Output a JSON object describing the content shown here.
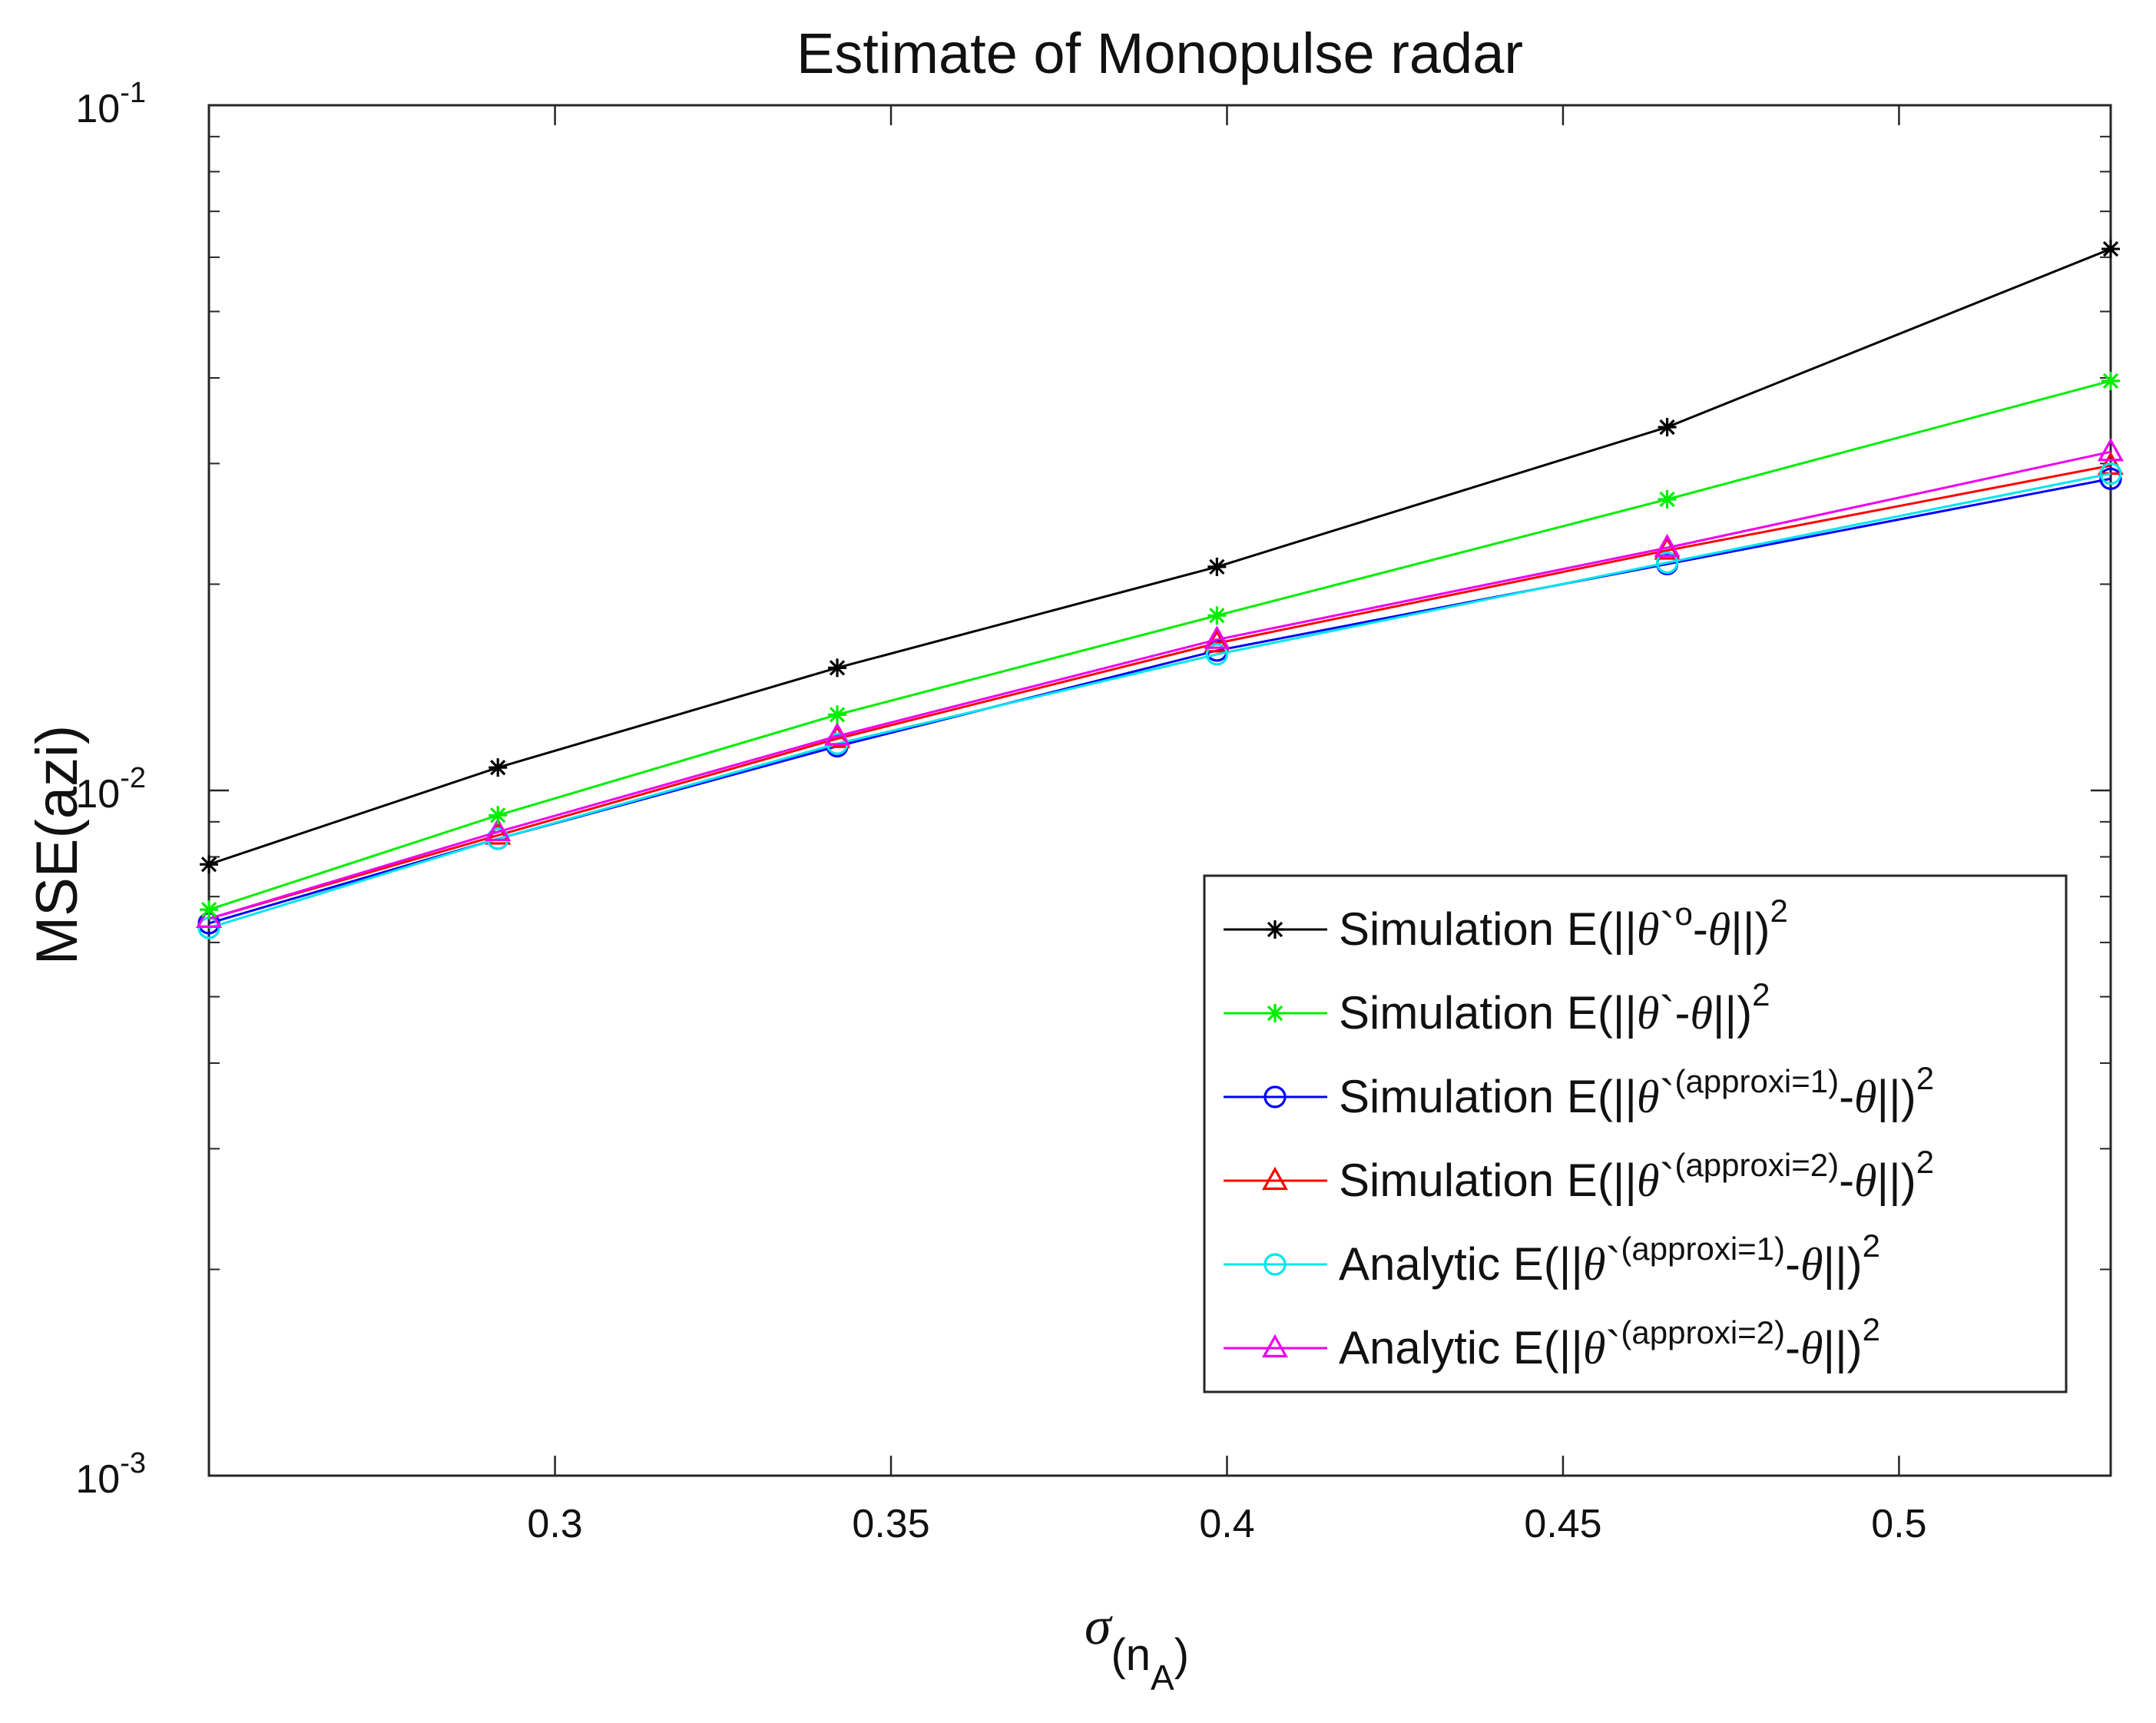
{
  "chart_data": {
    "type": "line",
    "title": "Estimate of Monopulse radar",
    "ylabel": "MSE(azi)",
    "xlabel": {
      "symbol": "σ",
      "sub_main": "(n",
      "sub_sub": "A",
      "sub_close": ")"
    },
    "xlim": [
      0.2485,
      0.5315
    ],
    "ylim": [
      0.001,
      0.1
    ],
    "yscale": "log",
    "grid": false,
    "legend_position": "bottom-right",
    "x_ticks": [
      {
        "value": 0.3,
        "label": "0.3"
      },
      {
        "value": 0.35,
        "label": "0.35"
      },
      {
        "value": 0.4,
        "label": "0.4"
      },
      {
        "value": 0.45,
        "label": "0.45"
      },
      {
        "value": 0.5,
        "label": "0.5"
      }
    ],
    "y_ticks": [
      {
        "value": 0.1,
        "base": "10",
        "exp": "-1"
      },
      {
        "value": 0.01,
        "base": "10",
        "exp": "-2"
      },
      {
        "value": 0.001,
        "base": "10",
        "exp": "-3"
      }
    ],
    "x": [
      0.2485,
      0.2915,
      0.342,
      0.3985,
      0.4655,
      0.5315
    ],
    "series": [
      {
        "id": "sim-o",
        "name": "Simulation E(||θ`o-θ||)2",
        "color": "#000000",
        "marker": "star",
        "values": [
          0.0078,
          0.0108,
          0.0151,
          0.0212,
          0.0339,
          0.0617
        ],
        "legend": {
          "pre": "Simulation E(||",
          "greek": "θ",
          "mid": "`",
          "sup": "o",
          "post": "-",
          "greek2": "θ",
          "end": "||)",
          "power": "2"
        }
      },
      {
        "id": "sim-plain",
        "name": "Simulation E(||θ`-θ||)2",
        "color": "#00ee00",
        "marker": "star",
        "values": [
          0.0067,
          0.0092,
          0.0129,
          0.018,
          0.0266,
          0.0396
        ],
        "legend": {
          "pre": "Simulation E(||",
          "greek": "θ",
          "mid": "`",
          "sup": "",
          "post": "-",
          "greek2": "θ",
          "end": "||)",
          "power": "2"
        }
      },
      {
        "id": "sim-a1",
        "name": "Simulation E(||θ`(approxi=1)-θ||)2",
        "color": "#0000ff",
        "marker": "circle",
        "values": [
          0.0064,
          0.0085,
          0.0116,
          0.016,
          0.0214,
          0.0285
        ],
        "legend": {
          "pre": "Simulation E(||",
          "greek": "θ",
          "mid": "`",
          "sup": "(approxi=1)",
          "post": "-",
          "greek2": "θ",
          "end": "||)",
          "power": "2"
        }
      },
      {
        "id": "sim-a2",
        "name": "Simulation E(||θ`(approxi=2)-θ||)2",
        "color": "#ff0000",
        "marker": "triangle",
        "values": [
          0.0065,
          0.0086,
          0.0119,
          0.0164,
          0.0224,
          0.0298
        ],
        "legend": {
          "pre": "Simulation E(||",
          "greek": "θ",
          "mid": "`",
          "sup": "(approxi=2)",
          "post": "-",
          "greek2": "θ",
          "end": "||)",
          "power": "2"
        }
      },
      {
        "id": "ana-a1",
        "name": "Analytic E(||θ`(approxi=1)-θ||)2",
        "color": "#00e5ee",
        "marker": "circle",
        "values": [
          0.0063,
          0.0085,
          0.0117,
          0.0158,
          0.0215,
          0.029
        ],
        "legend": {
          "pre": " Analytic E(||",
          "greek": "θ",
          "mid": "`",
          "sup": "(approxi=1)",
          "post": "-",
          "greek2": "θ",
          "end": "||)",
          "power": "2"
        }
      },
      {
        "id": "ana-a2",
        "name": "Analytic E(||θ`(approxi=2)-θ||)2",
        "color": "#ee00ee",
        "marker": "triangle",
        "values": [
          0.0065,
          0.0087,
          0.012,
          0.0166,
          0.0226,
          0.0312
        ],
        "legend": {
          "pre": " Analytic E(||",
          "greek": "θ",
          "mid": "`",
          "sup": "(approxi=2)",
          "post": "-",
          "greek2": "θ",
          "end": "||)",
          "power": "2"
        }
      }
    ]
  }
}
